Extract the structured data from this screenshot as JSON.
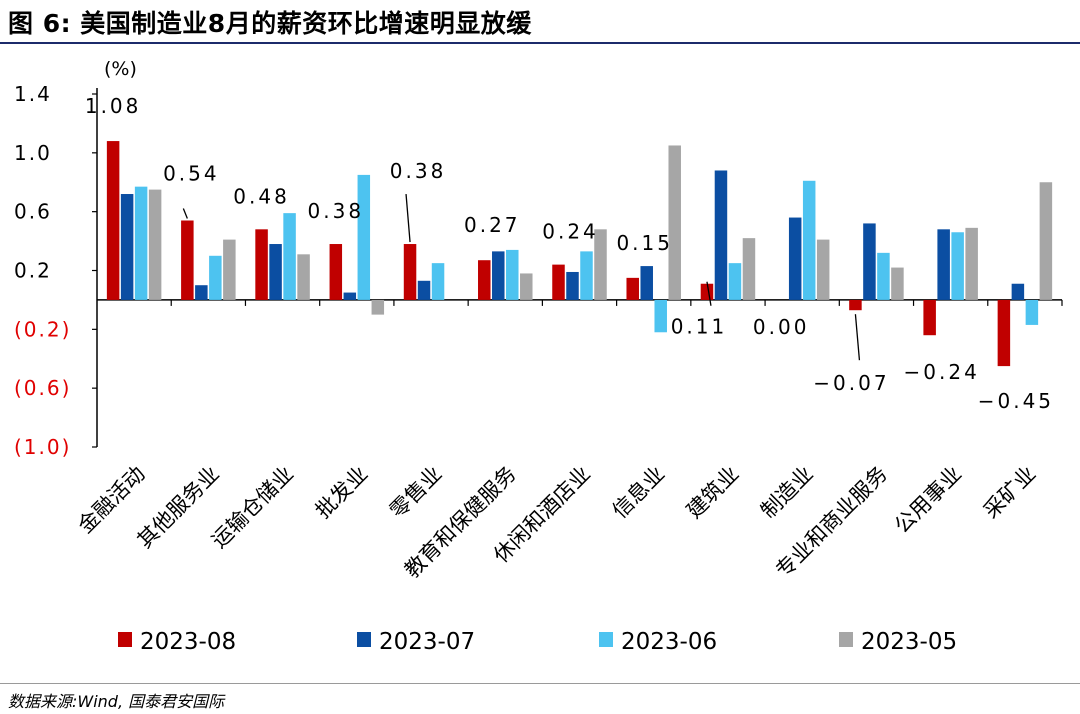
{
  "title": "图 6:  美国制造业8月的薪资环比增速明显放缓",
  "source": "数据来源:Wind, 国泰君安国际",
  "chart_data": {
    "type": "bar",
    "unit_label": "(%)",
    "categories": [
      "金融活动",
      "其他服务业",
      "运输仓储业",
      "批发业",
      "零售业",
      "教育和保健服务",
      "休闲和酒店业",
      "信息业",
      "建筑业",
      "制造业",
      "专业和商业服务",
      "公用事业",
      "采矿业"
    ],
    "series": [
      {
        "name": "2023-08",
        "color": "#c00000",
        "values": [
          1.08,
          0.54,
          0.48,
          0.38,
          0.38,
          0.27,
          0.24,
          0.15,
          0.11,
          0.0,
          -0.07,
          -0.24,
          -0.45
        ]
      },
      {
        "name": "2023-07",
        "color": "#0b4ea2",
        "values": [
          0.72,
          0.1,
          0.38,
          0.05,
          0.13,
          0.33,
          0.19,
          0.23,
          0.88,
          0.56,
          0.52,
          0.48,
          0.11
        ]
      },
      {
        "name": "2023-06",
        "color": "#4dc3f0",
        "values": [
          0.77,
          0.3,
          0.59,
          0.85,
          0.25,
          0.34,
          0.33,
          -0.22,
          0.25,
          0.81,
          0.32,
          0.46,
          -0.17
        ]
      },
      {
        "name": "2023-05",
        "color": "#a6a6a6",
        "values": [
          0.75,
          0.41,
          0.31,
          -0.1,
          0.0,
          0.18,
          0.48,
          1.05,
          0.42,
          0.41,
          0.22,
          0.49,
          0.8
        ]
      }
    ],
    "data_labels": [
      "1.08",
      "0.54",
      "0.48",
      "0.38",
      "0.38",
      "0.27",
      "0.24",
      "0.15",
      "0.11",
      "0.00",
      "−0.07",
      "−0.24",
      "−0.45"
    ],
    "ylim": [
      -1.0,
      1.4
    ],
    "yticks": [
      1.4,
      1.0,
      0.6,
      0.2,
      -0.2,
      -0.6,
      -1.0
    ],
    "ytick_labels": [
      "1.4",
      "1.0",
      "0.6",
      "0.2",
      "(0.2)",
      "(0.6)",
      "(1.0)"
    ],
    "negative_tick_color": "#e00000",
    "legend_position": "bottom",
    "grid": false
  }
}
